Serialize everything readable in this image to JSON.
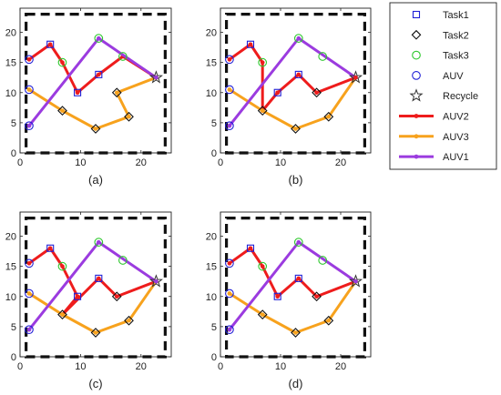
{
  "chart_data": {
    "type": "line",
    "xlim": [
      0,
      25
    ],
    "ylim": [
      0,
      24
    ],
    "xticks": [
      0,
      10,
      20
    ],
    "yticks": [
      0,
      5,
      10,
      15,
      20
    ],
    "grid": false,
    "legend_position": "right",
    "legend": [
      {
        "label": "Task1",
        "kind": "marker",
        "marker": "square",
        "color": "#1f1fd6"
      },
      {
        "label": "Task2",
        "kind": "marker",
        "marker": "diamond",
        "color": "#111111"
      },
      {
        "label": "Task3",
        "kind": "marker",
        "marker": "circle",
        "color": "#2fc82f"
      },
      {
        "label": "AUV",
        "kind": "marker",
        "marker": "circle",
        "color": "#1f1fd6"
      },
      {
        "label": "Recycle",
        "kind": "marker",
        "marker": "star",
        "color": "#333333"
      },
      {
        "label": "AUV2",
        "kind": "line",
        "color": "#ee1c1c"
      },
      {
        "label": "AUV3",
        "kind": "line",
        "color": "#f7a21d"
      },
      {
        "label": "AUV1",
        "kind": "line",
        "color": "#9b3bdf"
      }
    ],
    "points": {
      "task1": [
        [
          5,
          18
        ],
        [
          9.5,
          10
        ],
        [
          13,
          13
        ]
      ],
      "task2": [
        [
          7,
          7
        ],
        [
          12.5,
          4
        ],
        [
          16,
          10
        ],
        [
          18,
          6
        ]
      ],
      "task3": [
        [
          7,
          15
        ],
        [
          13,
          19
        ],
        [
          17,
          16
        ]
      ],
      "auv": [
        [
          1.5,
          15.5
        ],
        [
          1.5,
          10.5
        ],
        [
          1.5,
          4.5
        ]
      ],
      "recycle": [
        [
          22.5,
          12.5
        ]
      ]
    },
    "panels": [
      {
        "caption": "(a)",
        "series": [
          {
            "name": "AUV2",
            "color": "#ee1c1c",
            "x": [
              1.5,
              5,
              7,
              9.5,
              13,
              17,
              22.5
            ],
            "y": [
              15.5,
              18,
              15,
              10,
              13,
              16,
              12.5
            ]
          },
          {
            "name": "AUV3",
            "color": "#f7a21d",
            "x": [
              1.5,
              7,
              12.5,
              18,
              16,
              22.5
            ],
            "y": [
              10.5,
              7,
              4,
              6,
              10,
              12.5
            ]
          },
          {
            "name": "AUV1",
            "color": "#9b3bdf",
            "x": [
              1.5,
              13,
              22.5
            ],
            "y": [
              4.5,
              19,
              12.5
            ]
          }
        ]
      },
      {
        "caption": "(b)",
        "series": [
          {
            "name": "AUV2",
            "color": "#ee1c1c",
            "x": [
              1.5,
              5,
              7,
              7,
              9.5
            ],
            "y": [
              15.5,
              18,
              15,
              7,
              10
            ]
          },
          {
            "name": "AUV3",
            "color": "#f7a21d",
            "x": [
              1.5,
              7,
              12.5,
              18,
              22.5
            ],
            "y": [
              10.5,
              7,
              4,
              6,
              12.5
            ]
          },
          {
            "name": "AUV1",
            "color": "#9b3bdf",
            "x": [
              1.5,
              13,
              22.5
            ],
            "y": [
              4.5,
              19,
              12.5
            ]
          },
          {
            "name": "AUV2",
            "color": "#ee1c1c",
            "x": [
              9.5,
              13,
              16,
              22.5
            ],
            "y": [
              10,
              13,
              10,
              12.5
            ]
          }
        ]
      },
      {
        "caption": "(c)",
        "series": [
          {
            "name": "AUV2",
            "color": "#ee1c1c",
            "x": [
              1.5,
              5,
              7,
              9.5,
              7,
              13,
              16,
              22.5
            ],
            "y": [
              15.5,
              18,
              15,
              10,
              7,
              13,
              10,
              12.5
            ]
          },
          {
            "name": "AUV3",
            "color": "#f7a21d",
            "x": [
              1.5,
              7,
              12.5,
              18,
              22.5
            ],
            "y": [
              10.5,
              7,
              4,
              6,
              12.5
            ]
          },
          {
            "name": "AUV1",
            "color": "#9b3bdf",
            "x": [
              1.5,
              13,
              22.5
            ],
            "y": [
              4.5,
              19,
              12.5
            ]
          }
        ]
      },
      {
        "caption": "(d)",
        "series": [
          {
            "name": "AUV2",
            "color": "#ee1c1c",
            "x": [
              1.5,
              5,
              7,
              9.5,
              13,
              16,
              22.5
            ],
            "y": [
              15.5,
              18,
              15,
              10,
              13,
              10,
              12.5
            ]
          },
          {
            "name": "AUV3",
            "color": "#f7a21d",
            "x": [
              1.5,
              7,
              12.5,
              18,
              22.5
            ],
            "y": [
              10.5,
              7,
              4,
              6,
              12.5
            ]
          },
          {
            "name": "AUV1",
            "color": "#9b3bdf",
            "x": [
              1.5,
              13,
              22.5
            ],
            "y": [
              4.5,
              19,
              12.5
            ]
          }
        ]
      }
    ]
  }
}
